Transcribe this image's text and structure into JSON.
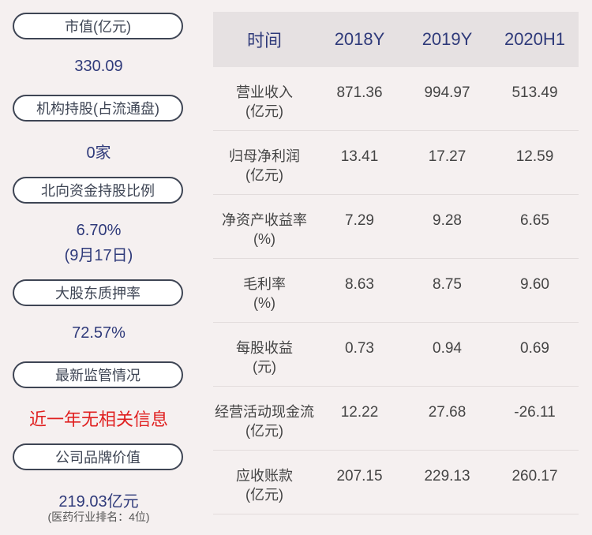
{
  "left_panel": {
    "market_cap": {
      "label": "市值(亿元)",
      "value": "330.09"
    },
    "institution": {
      "label": "机构持股(占流通盘)",
      "value": "0家"
    },
    "northbound": {
      "label": "北向资金持股比例",
      "value": "6.70%",
      "note": "(9月17日)"
    },
    "pledge": {
      "label": "大股东质押率",
      "value": "72.57%"
    },
    "regulation": {
      "label": "最新监管情况",
      "value": "近一年无相关信息"
    },
    "brand": {
      "label": "公司品牌价值",
      "value": "219.03亿元",
      "note": "(医药行业排名：4位)"
    }
  },
  "table": {
    "headers": [
      "时间",
      "2018Y",
      "2019Y",
      "2020H1"
    ],
    "rows": [
      {
        "label": "营业收入",
        "unit": "(亿元)",
        "values": [
          "871.36",
          "994.97",
          "513.49"
        ]
      },
      {
        "label": "归母净利润",
        "unit": "(亿元)",
        "values": [
          "13.41",
          "17.27",
          "12.59"
        ]
      },
      {
        "label": "净资产收益率",
        "unit": "(%)",
        "values": [
          "7.29",
          "9.28",
          "6.65"
        ]
      },
      {
        "label": "毛利率",
        "unit": "(%)",
        "values": [
          "8.63",
          "8.75",
          "9.60"
        ]
      },
      {
        "label": "每股收益",
        "unit": "(元)",
        "values": [
          "0.73",
          "0.94",
          "0.69"
        ]
      },
      {
        "label": "经营活动现金流",
        "unit": "(亿元)",
        "values": [
          "12.22",
          "27.68",
          "-26.11"
        ]
      },
      {
        "label": "应收账款",
        "unit": "(亿元)",
        "values": [
          "207.15",
          "229.13",
          "260.17"
        ]
      }
    ]
  },
  "colors": {
    "navy": "#2f3a7a",
    "red": "#e02020",
    "background": "#f5f0f0",
    "header_bg": "#e6e1e2"
  }
}
